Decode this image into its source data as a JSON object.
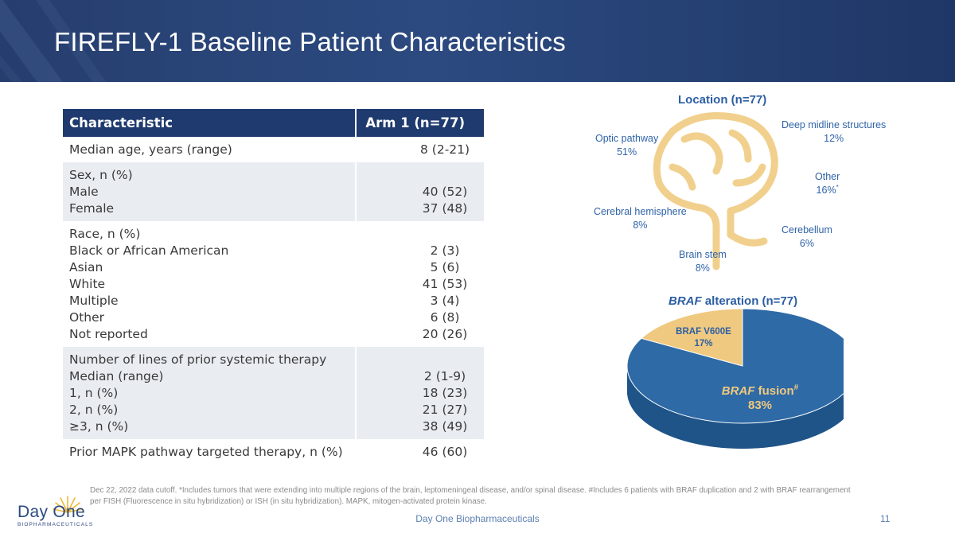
{
  "header": {
    "title": "FIREFLY-1 Baseline Patient Characteristics"
  },
  "table": {
    "col_characteristic": "Characteristic",
    "col_arm": "Arm 1 (n=77)",
    "rows": [
      {
        "head": "Median age, years (range)",
        "head_value": "8 (2-21)",
        "items": []
      },
      {
        "head": "Sex, n (%)",
        "head_value": "",
        "items": [
          {
            "label": "Male",
            "value": "40 (52)"
          },
          {
            "label": "Female",
            "value": "37 (48)"
          }
        ]
      },
      {
        "head": "Race, n (%)",
        "head_value": "",
        "items": [
          {
            "label": "Black or African American",
            "value": "2 (3)"
          },
          {
            "label": "Asian",
            "value": "5 (6)"
          },
          {
            "label": "White",
            "value": "41 (53)"
          },
          {
            "label": "Multiple",
            "value": "3 (4)"
          },
          {
            "label": "Other",
            "value": "6 (8)"
          },
          {
            "label": "Not reported",
            "value": "20 (26)"
          }
        ]
      },
      {
        "head": "Number of lines of prior systemic therapy",
        "head_value": "",
        "items": [
          {
            "label": "Median (range)",
            "value": "2 (1-9)"
          },
          {
            "label": "1, n (%)",
            "value": "18 (23)"
          },
          {
            "label": "2, n (%)",
            "value": "21 (27)"
          },
          {
            "label": "≥3, n (%)",
            "value": "38 (49)"
          }
        ]
      },
      {
        "head": "Prior MAPK pathway targeted therapy, n (%)",
        "head_value": "46 (60)",
        "items": []
      }
    ]
  },
  "location": {
    "title": "Location (n=77)",
    "optic_name": "Optic pathway",
    "optic_pct": "51%",
    "deep_name": "Deep midline structures",
    "deep_pct": "12%",
    "other_name": "Other",
    "other_pct": "16%",
    "other_mark": "*",
    "cerebral_name": "Cerebral hemisphere",
    "cerebral_pct": "8%",
    "cerebellum_name": "Cerebellum",
    "cerebellum_pct": "6%",
    "brainstem_name": "Brain stem",
    "brainstem_pct": "8%"
  },
  "braf": {
    "title_gene": "BRAF",
    "title_rest": " alteration (n=77)",
    "v600e_label": "BRAF V600E",
    "v600e_pct": "17%",
    "v600e_value": 17,
    "fusion_gene": "BRAF",
    "fusion_rest": " fusion",
    "fusion_mark": "#",
    "fusion_pct": "83%",
    "fusion_value": 83,
    "colors": {
      "fusion": "#2e6aa6",
      "v600e": "#efc980"
    }
  },
  "footnote": "Dec 22, 2022 data cutoff. *Includes tumors that were extending into multiple regions of the brain, leptomeningeal disease, and/or spinal disease. #Includes 6 patients with BRAF duplication and 2 with BRAF rearrangement per FISH (Fluorescence in situ hybridization) or ISH (in situ hybridization). MAPK, mitogen-activated protein kinase.",
  "footer": {
    "company": "Day One Biopharmaceuticals",
    "page": "11"
  },
  "logo": {
    "name": "Day One",
    "sub": "BIOPHARMACEUTICALS"
  }
}
